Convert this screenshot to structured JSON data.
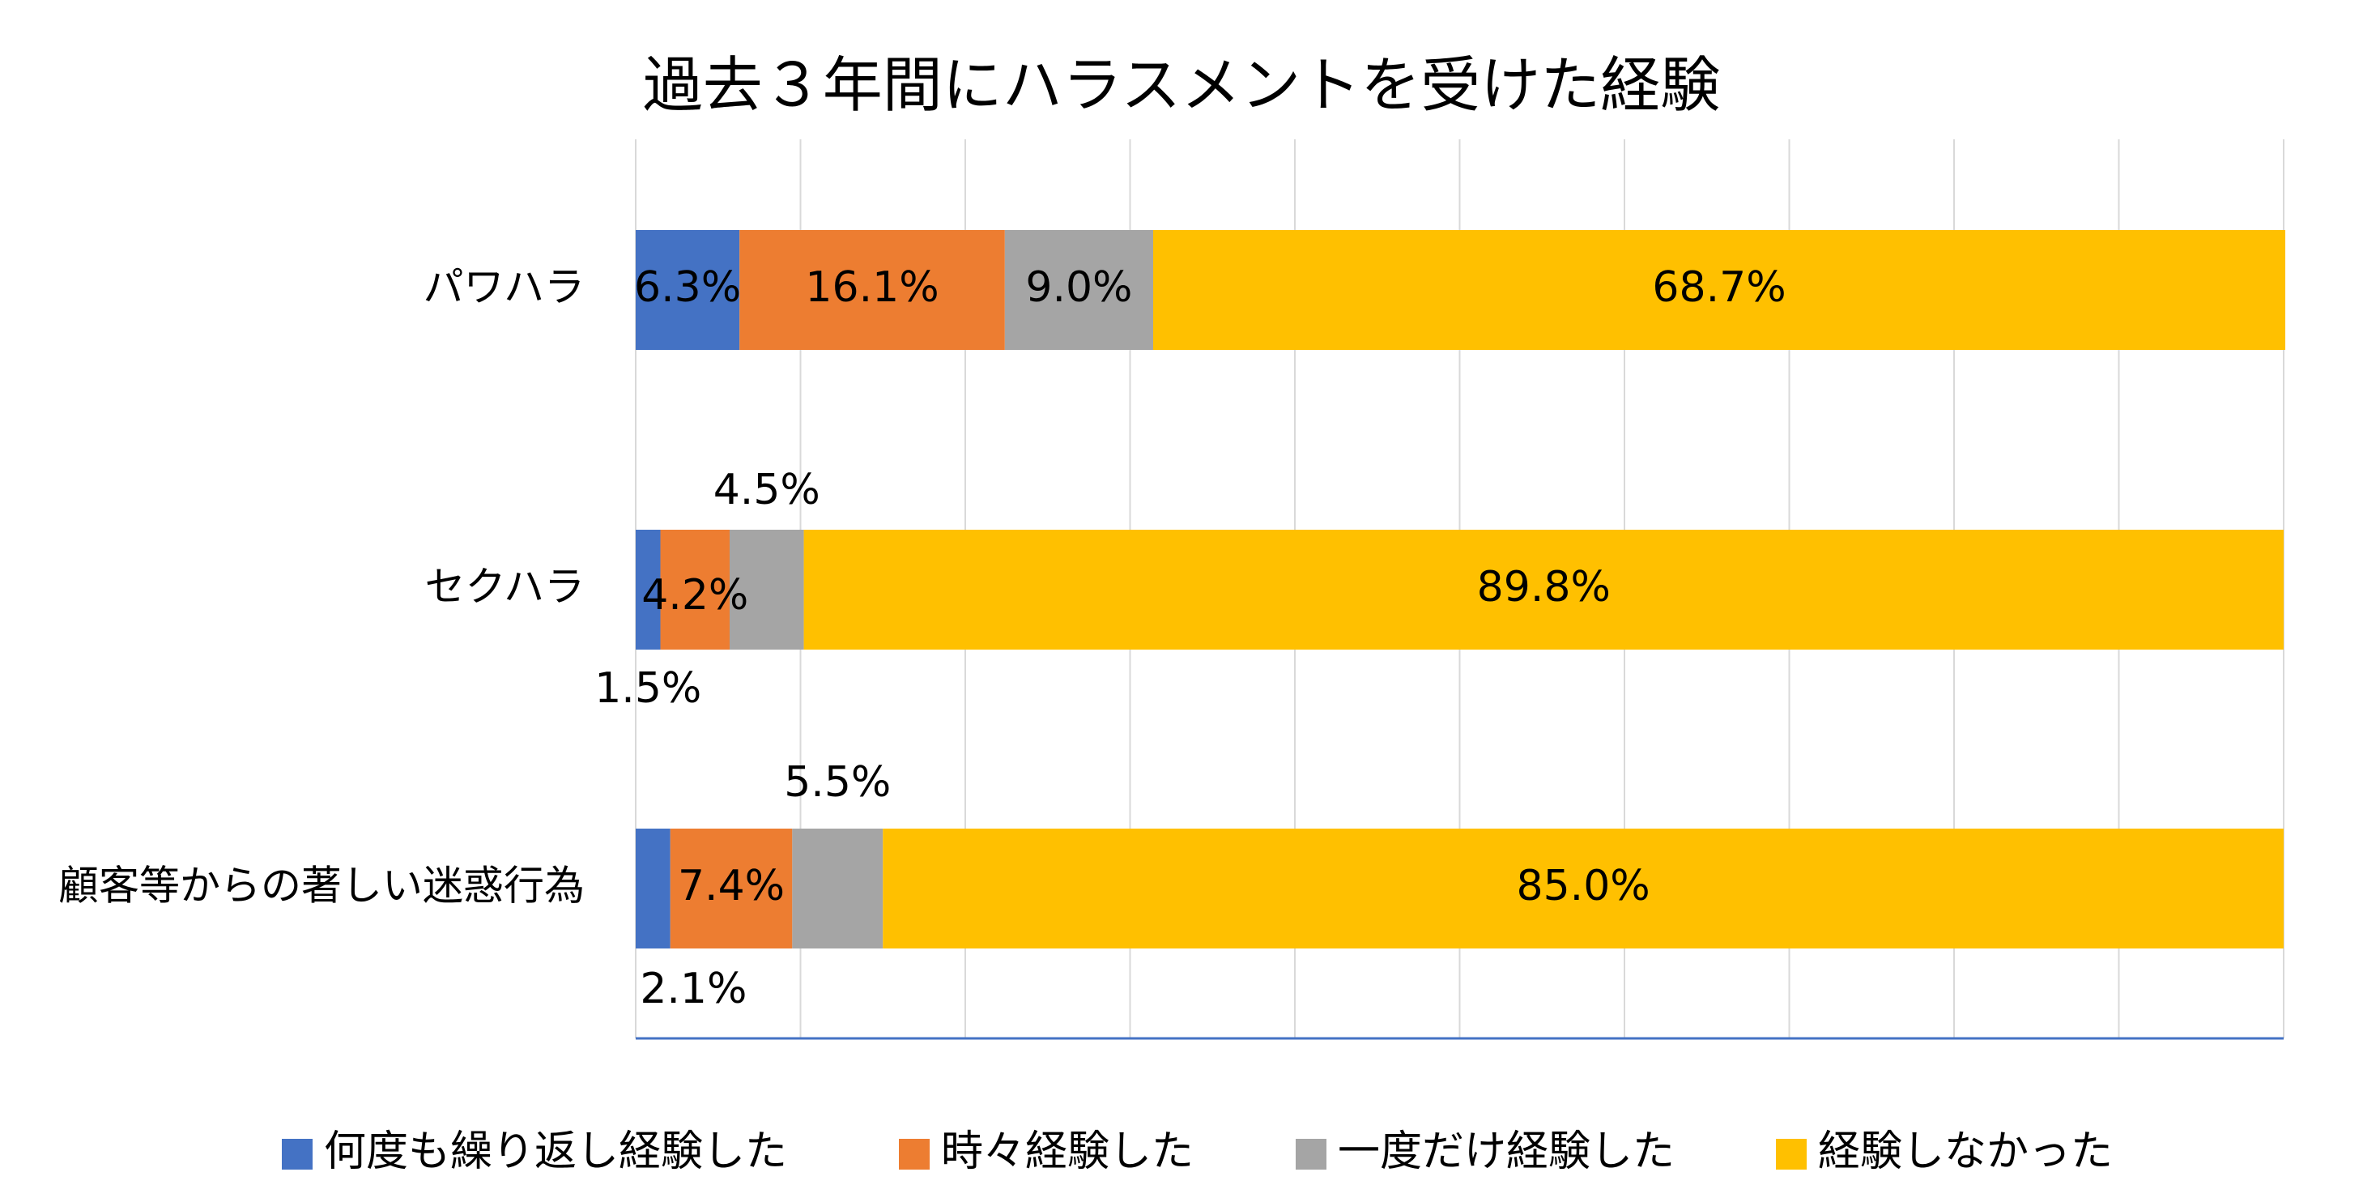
{
  "chart_data": {
    "type": "bar",
    "orientation": "horizontal",
    "stacked": true,
    "title": "過去３年間にハラスメントを受けた経験",
    "categories": [
      "パワハラ",
      "セクハラ",
      "顧客等からの著しい迷惑行為"
    ],
    "series": [
      {
        "name": "何度も繰り返し経験した",
        "color": "#4472C4",
        "values": [
          6.3,
          1.5,
          2.1
        ],
        "labels": [
          "6.3%",
          "1.5%",
          "2.1%"
        ]
      },
      {
        "name": "時々経験した",
        "color": "#ED7D31",
        "values": [
          16.1,
          4.2,
          7.4
        ],
        "labels": [
          "16.1%",
          "4.2%",
          "7.4%"
        ]
      },
      {
        "name": "一度だけ経験した",
        "color": "#A5A5A5",
        "values": [
          9.0,
          4.5,
          5.5
        ],
        "labels": [
          "9.0%",
          "4.5%",
          "5.5%"
        ]
      },
      {
        "name": "経験しなかった",
        "color": "#FFC000",
        "values": [
          68.7,
          89.8,
          85.0
        ],
        "labels": [
          "68.7%",
          "89.8%",
          "85.0%"
        ]
      }
    ],
    "xlim": [
      0,
      100
    ],
    "grid": true,
    "legend_position": "bottom",
    "axis_line_color": "#4472C4",
    "grid_color": "#D9D9D9"
  }
}
